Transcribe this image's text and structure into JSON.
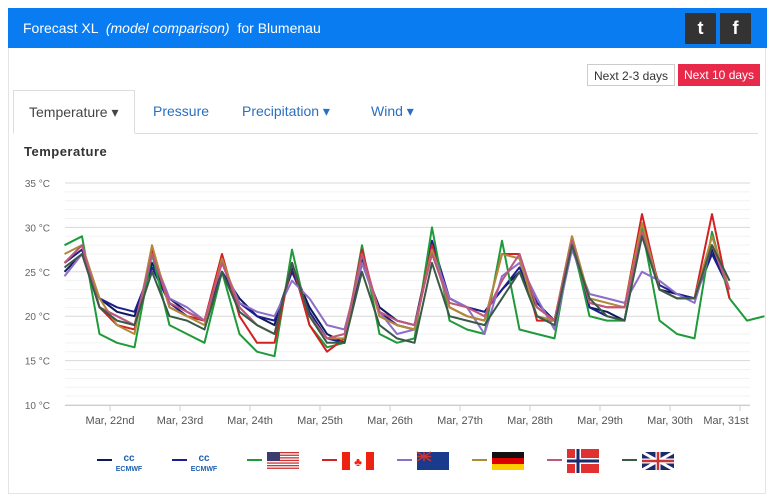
{
  "header": {
    "title_prefix": "Forecast XL",
    "title_italic": "(model comparison)",
    "title_suffix": "for Blumenau",
    "twitter_icon": "twitter-icon",
    "facebook_icon": "facebook-icon"
  },
  "range_buttons": {
    "short": "Next 2-3 days",
    "long": "Next 10 days",
    "active_color": "#e8294a"
  },
  "tabs": [
    {
      "label": "Temperature ▾"
    },
    {
      "label": "Pressure"
    },
    {
      "label": "Precipitation ▾"
    },
    {
      "label": "Wind ▾"
    }
  ],
  "chart_data": {
    "type": "line",
    "title": "Temperature",
    "ylim": [
      10,
      35
    ],
    "yticks": [
      "10 °C",
      "15 °C",
      "20 °C",
      "25 °C",
      "30 °C",
      "35 °C"
    ],
    "xticks": [
      "Mar, 22nd",
      "Mar, 23rd",
      "Mar, 24th",
      "Mar, 25th",
      "Mar, 26th",
      "Mar, 27th",
      "Mar, 28th",
      "Mar, 29th",
      "Mar, 30th",
      "Mar, 31st"
    ],
    "x_start_day": 21.35,
    "x_step_day": 0.25,
    "xlim_day": [
      21.36,
      31.15
    ],
    "series": [
      {
        "name": "ECMWF",
        "legend": "ECMWF",
        "color": "#0e1a5c",
        "values": [
          25,
          27,
          22,
          20.5,
          20,
          26,
          22,
          20.5,
          19.5,
          25,
          22,
          20,
          19,
          25.5,
          21,
          18,
          17,
          26,
          21,
          19.5,
          19,
          28,
          22,
          21,
          20.5,
          23,
          25,
          21,
          19.5,
          28,
          21,
          20.5,
          19.5,
          29.5,
          23,
          22.5,
          22,
          27.5,
          23
        ]
      },
      {
        "name": "ECMWF ensemble",
        "legend": "ECMWF",
        "color": "#1d1f8c",
        "values": [
          26,
          27.5,
          22,
          21,
          20.5,
          25.5,
          21.5,
          20,
          19.5,
          25,
          21.5,
          20,
          19.5,
          25,
          20.5,
          17.5,
          17,
          26.5,
          20.5,
          19,
          18.5,
          28.5,
          22,
          21,
          20.5,
          23,
          25.5,
          21.5,
          19.5,
          28,
          21,
          20,
          19.5,
          29.5,
          23.5,
          22.5,
          22,
          27,
          23
        ]
      },
      {
        "name": "GFS (USA)",
        "color": "#1f9a3a",
        "values": [
          28,
          29,
          18,
          17,
          16.5,
          27,
          19,
          18,
          17,
          25,
          18,
          16,
          15.5,
          27.5,
          19,
          16.5,
          17,
          28,
          18,
          17,
          17.5,
          30,
          19.5,
          18.5,
          18,
          28.5,
          18.5,
          18,
          17.5,
          28.5,
          20,
          19.5,
          19.5,
          30,
          19.5,
          18,
          17.5,
          29.5,
          22,
          19.5,
          20
        ]
      },
      {
        "name": "GEM (Canada)",
        "color": "#d42020",
        "values": [
          26,
          28,
          21,
          19,
          18.5,
          27.5,
          21,
          20,
          19.5,
          27,
          20,
          17,
          17,
          26,
          19,
          16,
          17.5,
          27.5,
          20,
          19,
          18.5,
          28,
          21,
          20,
          19.5,
          27,
          27,
          19.5,
          19.5,
          29,
          21.5,
          21,
          21,
          31.5,
          23,
          22,
          22,
          31.5,
          22
        ]
      },
      {
        "name": "ACCESS (Australia)",
        "color": "#8b6fc8",
        "values": [
          24.5,
          27,
          21,
          20,
          19,
          27,
          22,
          21,
          19.5,
          26,
          21.5,
          20.5,
          20,
          24,
          22,
          19,
          18.5,
          26,
          20.5,
          18,
          18.5,
          27.5,
          22,
          21,
          18,
          24.5,
          26,
          22,
          18.5,
          27.5,
          22.5,
          22,
          21.5,
          25,
          24,
          22.5,
          21.5,
          28,
          24
        ]
      },
      {
        "name": "ICON (Germany)",
        "color": "#b08a3a",
        "values": [
          27,
          28,
          22,
          19,
          18,
          28,
          21,
          20,
          19,
          26.5,
          21,
          19,
          18,
          26,
          20,
          17.5,
          17.5,
          27,
          20,
          19,
          18.5,
          27.5,
          21,
          20,
          19.5,
          27,
          26.5,
          20,
          19.5,
          29,
          22,
          21.5,
          21,
          30.5,
          23,
          22,
          22,
          29,
          23
        ]
      },
      {
        "name": "Norway",
        "color": "#c0577e",
        "values": [
          26,
          28,
          21,
          20,
          19,
          27,
          21.5,
          20.5,
          19.5,
          26,
          21,
          19,
          18,
          26,
          20,
          17.5,
          18,
          27,
          20.5,
          19.5,
          19,
          27,
          21.5,
          21,
          20,
          24,
          27,
          21,
          19.5,
          28.5,
          21.5,
          21,
          21,
          29.5,
          23,
          22,
          22,
          28,
          23
        ]
      },
      {
        "name": "UKMO (UK)",
        "color": "#3a5a48",
        "values": [
          25.5,
          27,
          21,
          19.5,
          19,
          25,
          20,
          19.5,
          18.5,
          25,
          20.5,
          19,
          18,
          26,
          20,
          17,
          17,
          25,
          19,
          17.5,
          17,
          26,
          20,
          19.5,
          19,
          22,
          25,
          20,
          19,
          28,
          22,
          20,
          19.5,
          29,
          23,
          22,
          22,
          28,
          24
        ]
      }
    ]
  }
}
